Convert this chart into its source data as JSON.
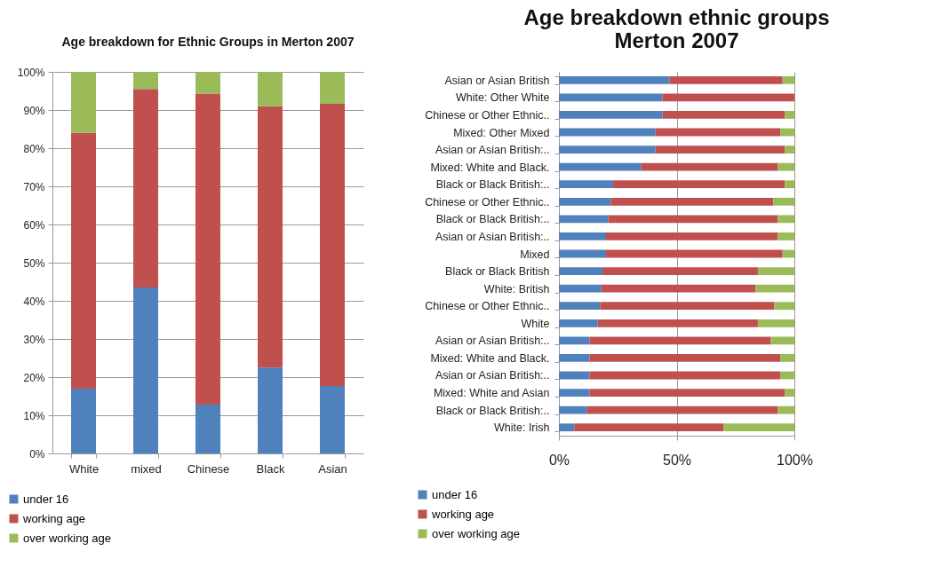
{
  "chart_data": [
    {
      "type": "bar",
      "title": "Age breakdown for Ethnic Groups in Merton 2007",
      "stacked": true,
      "categories": [
        "White",
        "mixed",
        "Chinese",
        "Black",
        "Asian"
      ],
      "series": [
        {
          "name": "under 16",
          "color": "#4f81bd",
          "values": [
            17,
            43.5,
            12.8,
            22.5,
            17.7
          ]
        },
        {
          "name": "working age",
          "color": "#c0504d",
          "values": [
            67,
            52,
            81.5,
            68.5,
            73.9
          ]
        },
        {
          "name": "over working age",
          "color": "#9bbb59",
          "values": [
            16,
            4.5,
            5.7,
            9,
            8.4
          ]
        }
      ],
      "ylim": [
        0,
        100
      ],
      "yticks": [
        {
          "value": 0,
          "label": "0%"
        },
        {
          "value": 10,
          "label": "10%"
        },
        {
          "value": 20,
          "label": "20%"
        },
        {
          "value": 30,
          "label": "30%"
        },
        {
          "value": 40,
          "label": "40%"
        },
        {
          "value": 50,
          "label": "50%"
        },
        {
          "value": 60,
          "label": "60%"
        },
        {
          "value": 70,
          "label": "70%"
        },
        {
          "value": 80,
          "label": "80%"
        },
        {
          "value": 90,
          "label": "90%"
        },
        {
          "value": 100,
          "label": "100%"
        }
      ],
      "grid": "y",
      "legend": "bottom left"
    },
    {
      "type": "bar",
      "title": "Age breakdown ethnic groups\nMerton 2007",
      "stacked": true,
      "orientation": "horizontal",
      "categories": [
        "Asian or Asian British",
        "White: Other White",
        "Chinese or Other Ethnic..",
        "Mixed: Other Mixed",
        "Asian or Asian British:..",
        "Mixed: White and Black.",
        "Black or Black British:..",
        "Chinese or Other Ethnic..",
        "Black or Black British:..",
        "Asian or Asian British:..",
        "Mixed",
        "Black or Black British",
        "White: British",
        "Chinese or Other Ethnic..",
        "White",
        "Asian or Asian British:..",
        "Mixed: White and Black.",
        "Asian or Asian British:..",
        "Mixed: White and Asian",
        "Black or Black British:..",
        "White: Irish"
      ],
      "series": [
        {
          "name": "under 16",
          "color": "#4f81bd",
          "values": [
            47,
            44,
            44,
            41,
            41,
            35,
            23,
            22,
            21,
            20,
            20,
            18.5,
            18,
            17.5,
            16.5,
            13,
            13,
            13,
            13,
            12,
            6.5
          ]
        },
        {
          "name": "working age",
          "color": "#c0504d",
          "values": [
            48,
            56,
            52,
            53,
            55,
            58,
            73,
            69,
            72,
            73,
            75,
            66,
            65.5,
            74,
            68,
            77,
            81,
            81,
            83,
            81,
            63.5
          ]
        },
        {
          "name": "over working age",
          "color": "#9bbb59",
          "values": [
            5,
            0,
            4,
            6,
            4,
            7,
            4,
            9,
            7,
            7,
            5,
            15.5,
            16.5,
            8.5,
            15.5,
            10,
            6,
            6,
            4,
            7,
            30
          ]
        }
      ],
      "xlim": [
        0,
        100
      ],
      "xticks": [
        {
          "value": 0,
          "label": "0%"
        },
        {
          "value": 50,
          "label": "50%"
        },
        {
          "value": 100,
          "label": "100%"
        }
      ],
      "grid": "x",
      "legend": "bottom left"
    }
  ]
}
